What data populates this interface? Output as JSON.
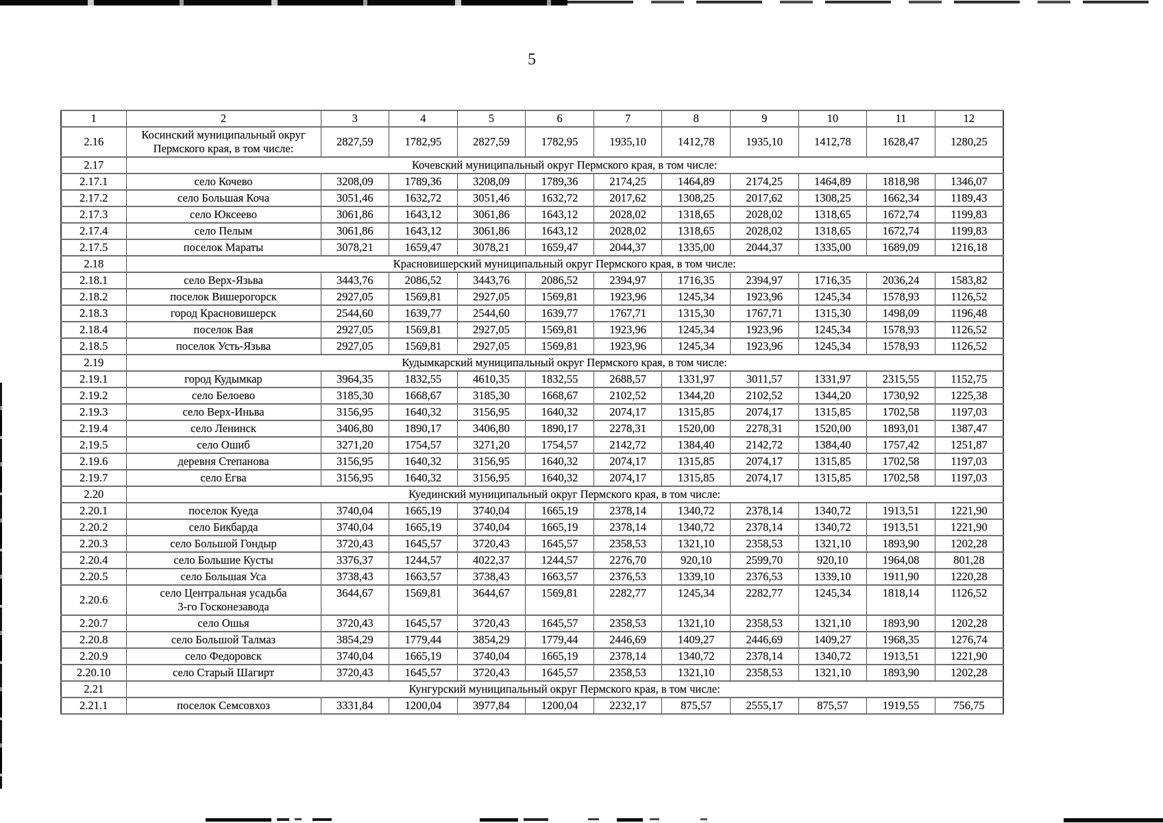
{
  "page": {
    "number": "5"
  },
  "table": {
    "columns": [
      "1",
      "2",
      "3",
      "4",
      "5",
      "6",
      "7",
      "8",
      "9",
      "10",
      "11",
      "12"
    ],
    "rows": [
      {
        "type": "data",
        "num": "2.16",
        "name": "Косинский муниципальный округ\nПермского края, в том числе:",
        "two_line": true,
        "values": [
          "2827,59",
          "1782,95",
          "2827,59",
          "1782,95",
          "1935,10",
          "1412,78",
          "1935,10",
          "1412,78",
          "1628,47",
          "1280,25"
        ]
      },
      {
        "type": "section",
        "num": "2.17",
        "name": "Кочевский муниципальный округ Пермского края, в том числе:"
      },
      {
        "type": "data",
        "num": "2.17.1",
        "name": "село Кочево",
        "values": [
          "3208,09",
          "1789,36",
          "3208,09",
          "1789,36",
          "2174,25",
          "1464,89",
          "2174,25",
          "1464,89",
          "1818,98",
          "1346,07"
        ]
      },
      {
        "type": "data",
        "num": "2.17.2",
        "name": "село Большая Коча",
        "values": [
          "3051,46",
          "1632,72",
          "3051,46",
          "1632,72",
          "2017,62",
          "1308,25",
          "2017,62",
          "1308,25",
          "1662,34",
          "1189,43"
        ]
      },
      {
        "type": "data",
        "num": "2.17.3",
        "name": "село Юксеево",
        "values": [
          "3061,86",
          "1643,12",
          "3061,86",
          "1643,12",
          "2028,02",
          "1318,65",
          "2028,02",
          "1318,65",
          "1672,74",
          "1199,83"
        ]
      },
      {
        "type": "data",
        "num": "2.17.4",
        "name": "село Пелым",
        "values": [
          "3061,86",
          "1643,12",
          "3061,86",
          "1643,12",
          "2028,02",
          "1318,65",
          "2028,02",
          "1318,65",
          "1672,74",
          "1199,83"
        ]
      },
      {
        "type": "data",
        "num": "2.17.5",
        "name": "поселок Мараты",
        "values": [
          "3078,21",
          "1659,47",
          "3078,21",
          "1659,47",
          "2044,37",
          "1335,00",
          "2044,37",
          "1335,00",
          "1689,09",
          "1216,18"
        ]
      },
      {
        "type": "section",
        "num": "2.18",
        "name": "Красновишерский муниципальный округ Пермского края, в том числе:"
      },
      {
        "type": "data",
        "num": "2.18.1",
        "name": "село Верх-Язьва",
        "values": [
          "3443,76",
          "2086,52",
          "3443,76",
          "2086,52",
          "2394,97",
          "1716,35",
          "2394,97",
          "1716,35",
          "2036,24",
          "1583,82"
        ]
      },
      {
        "type": "data",
        "num": "2.18.2",
        "name": "поселок Вишерогорск",
        "values": [
          "2927,05",
          "1569,81",
          "2927,05",
          "1569,81",
          "1923,96",
          "1245,34",
          "1923,96",
          "1245,34",
          "1578,93",
          "1126,52"
        ]
      },
      {
        "type": "data",
        "num": "2.18.3",
        "name": "город Красновишерск",
        "values": [
          "2544,60",
          "1639,77",
          "2544,60",
          "1639,77",
          "1767,71",
          "1315,30",
          "1767,71",
          "1315,30",
          "1498,09",
          "1196,48"
        ]
      },
      {
        "type": "data",
        "num": "2.18.4",
        "name": "поселок Вая",
        "values": [
          "2927,05",
          "1569,81",
          "2927,05",
          "1569,81",
          "1923,96",
          "1245,34",
          "1923,96",
          "1245,34",
          "1578,93",
          "1126,52"
        ]
      },
      {
        "type": "data",
        "num": "2.18.5",
        "name": "поселок Усть-Язьва",
        "values": [
          "2927,05",
          "1569,81",
          "2927,05",
          "1569,81",
          "1923,96",
          "1245,34",
          "1923,96",
          "1245,34",
          "1578,93",
          "1126,52"
        ]
      },
      {
        "type": "section",
        "num": "2.19",
        "name": "Кудымкарский муниципальный округ Пермского края, в том числе:"
      },
      {
        "type": "data",
        "num": "2.19.1",
        "name": "город Кудымкар",
        "values": [
          "3964,35",
          "1832,55",
          "4610,35",
          "1832,55",
          "2688,57",
          "1331,97",
          "3011,57",
          "1331,97",
          "2315,55",
          "1152,75"
        ]
      },
      {
        "type": "data",
        "num": "2.19.2",
        "name": "село Белоево",
        "values": [
          "3185,30",
          "1668,67",
          "3185,30",
          "1668,67",
          "2102,52",
          "1344,20",
          "2102,52",
          "1344,20",
          "1730,92",
          "1225,38"
        ]
      },
      {
        "type": "data",
        "num": "2.19.3",
        "name": "село Верх-Иньва",
        "values": [
          "3156,95",
          "1640,32",
          "3156,95",
          "1640,32",
          "2074,17",
          "1315,85",
          "2074,17",
          "1315,85",
          "1702,58",
          "1197,03"
        ]
      },
      {
        "type": "data",
        "num": "2.19.4",
        "name": "село Ленинск",
        "values": [
          "3406,80",
          "1890,17",
          "3406,80",
          "1890,17",
          "2278,31",
          "1520,00",
          "2278,31",
          "1520,00",
          "1893,01",
          "1387,47"
        ]
      },
      {
        "type": "data",
        "num": "2.19.5",
        "name": "село Ошиб",
        "values": [
          "3271,20",
          "1754,57",
          "3271,20",
          "1754,57",
          "2142,72",
          "1384,40",
          "2142,72",
          "1384,40",
          "1757,42",
          "1251,87"
        ]
      },
      {
        "type": "data",
        "num": "2.19.6",
        "name": "деревня Степанова",
        "values": [
          "3156,95",
          "1640,32",
          "3156,95",
          "1640,32",
          "2074,17",
          "1315,85",
          "2074,17",
          "1315,85",
          "1702,58",
          "1197,03"
        ]
      },
      {
        "type": "data",
        "num": "2.19.7",
        "name": "село Егва",
        "values": [
          "3156,95",
          "1640,32",
          "3156,95",
          "1640,32",
          "2074,17",
          "1315,85",
          "2074,17",
          "1315,85",
          "1702,58",
          "1197,03"
        ]
      },
      {
        "type": "section",
        "num": "2.20",
        "name": "Куединский муниципальный округ Пермского края, в том числе:"
      },
      {
        "type": "data",
        "num": "2.20.1",
        "name": "поселок Куеда",
        "values": [
          "3740,04",
          "1665,19",
          "3740,04",
          "1665,19",
          "2378,14",
          "1340,72",
          "2378,14",
          "1340,72",
          "1913,51",
          "1221,90"
        ]
      },
      {
        "type": "data",
        "num": "2.20.2",
        "name": "село Бикбарда",
        "values": [
          "3740,04",
          "1665,19",
          "3740,04",
          "1665,19",
          "2378,14",
          "1340,72",
          "2378,14",
          "1340,72",
          "1913,51",
          "1221,90"
        ]
      },
      {
        "type": "data",
        "num": "2.20.3",
        "name": "село Большой Гондыр",
        "values": [
          "3720,43",
          "1645,57",
          "3720,43",
          "1645,57",
          "2358,53",
          "1321,10",
          "2358,53",
          "1321,10",
          "1893,90",
          "1202,28"
        ]
      },
      {
        "type": "data",
        "num": "2.20.4",
        "name": "село Большие Кусты",
        "values": [
          "3376,37",
          "1244,57",
          "4022,37",
          "1244,57",
          "2276,70",
          "920,10",
          "2599,70",
          "920,10",
          "1964,08",
          "801,28"
        ]
      },
      {
        "type": "data",
        "num": "2.20.5",
        "name": "село Большая Уса",
        "values": [
          "3738,43",
          "1663,57",
          "3738,43",
          "1663,57",
          "2376,53",
          "1339,10",
          "2376,53",
          "1339,10",
          "1911,90",
          "1220,28"
        ]
      },
      {
        "type": "data",
        "num": "2.20.6",
        "name": "село Центральная усадьба\n3-го Госконезавода",
        "two_line": true,
        "values_top": true,
        "values": [
          "3644,67",
          "1569,81",
          "3644,67",
          "1569,81",
          "2282,77",
          "1245,34",
          "2282,77",
          "1245,34",
          "1818,14",
          "1126,52"
        ]
      },
      {
        "type": "data",
        "num": "2.20.7",
        "name": "село Ошья",
        "values": [
          "3720,43",
          "1645,57",
          "3720,43",
          "1645,57",
          "2358,53",
          "1321,10",
          "2358,53",
          "1321,10",
          "1893,90",
          "1202,28"
        ]
      },
      {
        "type": "data",
        "num": "2.20.8",
        "name": "село Большой Талмаз",
        "values": [
          "3854,29",
          "1779,44",
          "3854,29",
          "1779,44",
          "2446,69",
          "1409,27",
          "2446,69",
          "1409,27",
          "1968,35",
          "1276,74"
        ]
      },
      {
        "type": "data",
        "num": "2.20.9",
        "name": "село Федоровск",
        "values": [
          "3740,04",
          "1665,19",
          "3740,04",
          "1665,19",
          "2378,14",
          "1340,72",
          "2378,14",
          "1340,72",
          "1913,51",
          "1221,90"
        ]
      },
      {
        "type": "data",
        "num": "2.20.10",
        "name": "село Старый Шагирт",
        "values": [
          "3720,43",
          "1645,57",
          "3720,43",
          "1645,57",
          "2358,53",
          "1321,10",
          "2358,53",
          "1321,10",
          "1893,90",
          "1202,28"
        ]
      },
      {
        "type": "section",
        "num": "2.21",
        "name": "Кунгурский муниципальный округ Пермского края, в том числе:"
      },
      {
        "type": "data",
        "num": "2.21.1",
        "name": "поселок Семсовхоз",
        "values": [
          "3331,84",
          "1200,04",
          "3977,84",
          "1200,04",
          "2232,17",
          "875,57",
          "2555,17",
          "875,57",
          "1919,55",
          "756,75"
        ]
      }
    ]
  }
}
